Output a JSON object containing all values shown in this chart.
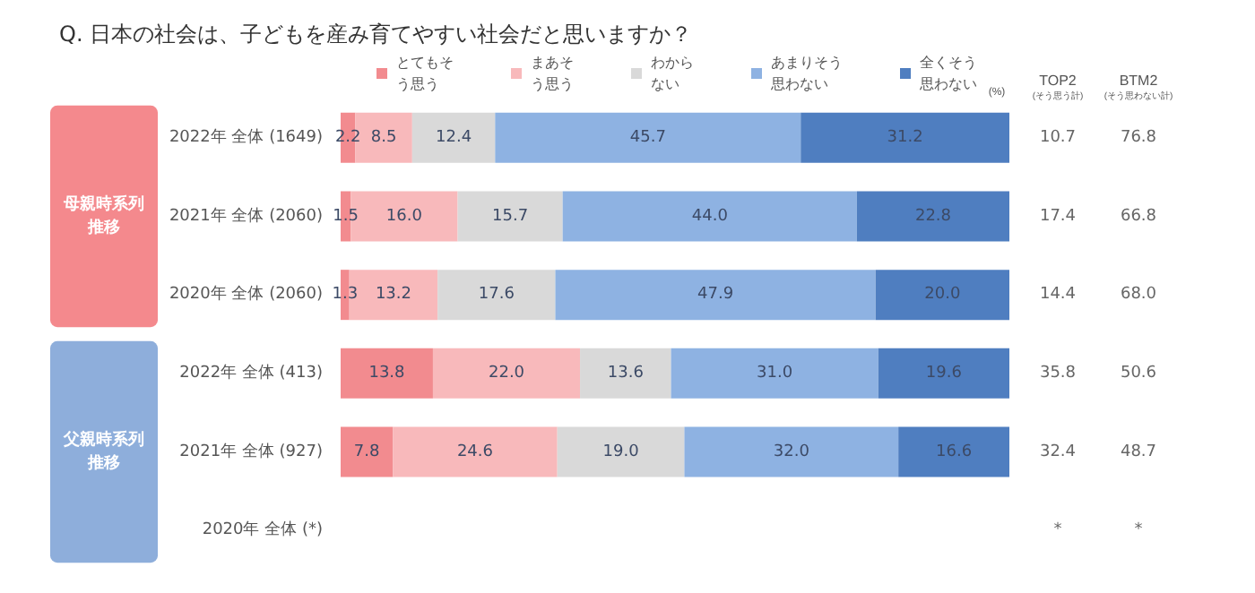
{
  "chart_data": {
    "type": "bar",
    "orientation": "horizontal",
    "stacked": true,
    "legend": "top",
    "title": "Q. 日本の社会は、子どもを産み育てやすい社会だと思いますか？",
    "categories": [
      "2022年 全体 (1649)",
      "2021年 全体 (2060)",
      "2020年 全体 (2060)",
      "2022年 全体 (413)",
      "2021年 全体 (927)",
      "2020年 全体 (*)"
    ],
    "series": [
      {
        "name": "とてもそう思う",
        "color": "#f28b8f",
        "values": [
          2.2,
          1.5,
          1.3,
          13.8,
          7.8,
          null
        ],
        "value_labels": [
          "2.2",
          "1.5",
          "1.3",
          "13.8",
          "7.8",
          null
        ]
      },
      {
        "name": "まあそう思う",
        "color": "#f8b9bb",
        "values": [
          8.5,
          16.0,
          13.2,
          22.0,
          24.6,
          null
        ],
        "value_labels": [
          "8.5",
          "16.0",
          "13.2",
          "22.0",
          "24.6",
          null
        ]
      },
      {
        "name": "わからない",
        "color": "#d9d9d9",
        "values": [
          12.4,
          15.7,
          17.6,
          13.6,
          19.0,
          null
        ],
        "value_labels": [
          "12.4",
          "15.7",
          "17.6",
          "13.6",
          "19.0",
          null
        ]
      },
      {
        "name": "あまりそう思わない",
        "color": "#8eb2e2",
        "values": [
          45.7,
          44.0,
          47.9,
          31.0,
          32.0,
          null
        ],
        "value_labels": [
          "45.7",
          "44.0",
          "47.9",
          "31.0",
          "32.0",
          null
        ]
      },
      {
        "name": "全くそう思わない",
        "color": "#4f7ec0",
        "values": [
          31.2,
          22.8,
          20.0,
          19.6,
          16.6,
          null
        ],
        "value_labels": [
          "31.2",
          "22.8",
          "20.0",
          "19.6",
          "16.6",
          null
        ]
      }
    ],
    "annotations": [
      "(%)",
      "TOP2",
      "(そう思う計)",
      "BTM2",
      "(そう思わない計)",
      "母親時系列推移",
      "父親時系列推移",
      "10.7",
      "76.8",
      "17.4",
      "66.8",
      "14.4",
      "68.0",
      "35.8",
      "50.6",
      "32.4",
      "48.7",
      "*",
      "*"
    ]
  }
}
